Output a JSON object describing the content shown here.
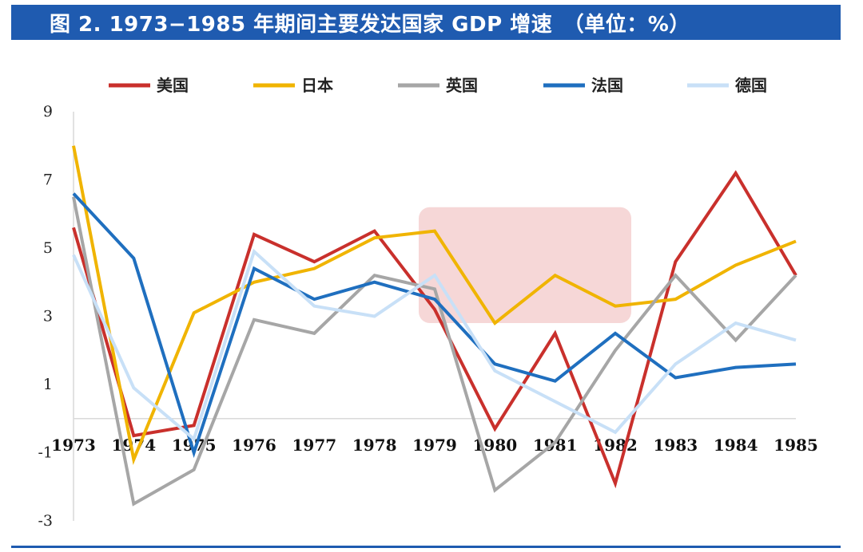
{
  "title": "图 2. 1973−1985 年期间主要发达国家 GDP 增速　（单位：%）",
  "chart_data": {
    "type": "line",
    "title": "图 2. 1973−1985 年期间主要发达国家 GDP 增速　（单位：%）",
    "xlabel": "",
    "ylabel": "",
    "categories": [
      "1973",
      "1974",
      "1975",
      "1976",
      "1977",
      "1978",
      "1979",
      "1980",
      "1981",
      "1982",
      "1983",
      "1984",
      "1985"
    ],
    "y_ticks": [
      9,
      7,
      5,
      3,
      1,
      -1,
      -3
    ],
    "ylim": [
      -3,
      9
    ],
    "grid": false,
    "legend_position": "top",
    "highlight": {
      "x_from": "1979",
      "x_to": "1982",
      "y_from": 2.8,
      "y_to": 6.2,
      "color": "#f4d0d0"
    },
    "series": [
      {
        "name": "美国",
        "color": "#c9302c",
        "values": [
          5.6,
          -0.5,
          -0.2,
          5.4,
          4.6,
          5.5,
          3.2,
          -0.3,
          2.5,
          -1.9,
          4.6,
          7.2,
          4.2
        ]
      },
      {
        "name": "日本",
        "color": "#f0b400",
        "values": [
          8.0,
          -1.2,
          3.1,
          4.0,
          4.4,
          5.3,
          5.5,
          2.8,
          4.2,
          3.3,
          3.5,
          4.5,
          5.2
        ]
      },
      {
        "name": "英国",
        "color": "#a6a6a6",
        "values": [
          6.5,
          -2.5,
          -1.5,
          2.9,
          2.5,
          4.2,
          3.8,
          -2.1,
          -0.7,
          2.0,
          4.2,
          2.3,
          4.2
        ]
      },
      {
        "name": "法国",
        "color": "#1f6fbf",
        "values": [
          6.6,
          4.7,
          -1.0,
          4.4,
          3.5,
          4.0,
          3.5,
          1.6,
          1.1,
          2.5,
          1.2,
          1.5,
          1.6
        ]
      },
      {
        "name": "德国",
        "color": "#c8e0f7",
        "values": [
          4.8,
          0.9,
          -0.6,
          4.9,
          3.3,
          3.0,
          4.2,
          1.4,
          0.5,
          -0.4,
          1.6,
          2.8,
          2.3
        ]
      }
    ]
  }
}
